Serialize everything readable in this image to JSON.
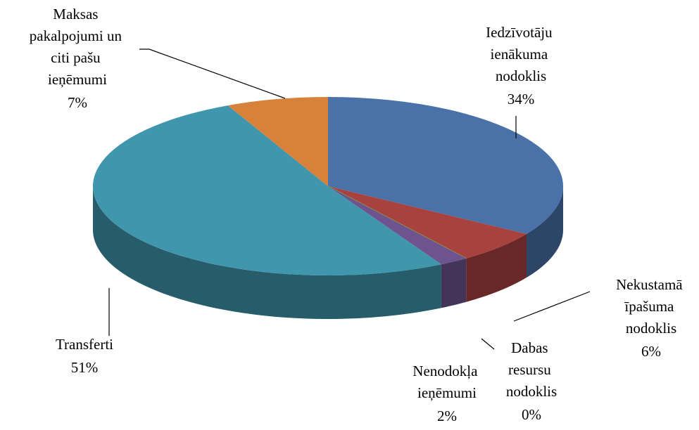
{
  "chart_data": {
    "type": "pie",
    "categories": [
      "Iedzīvotāju ienākuma nodoklis",
      "Nekustamā īpašuma nodoklis",
      "Dabas resursu nodoklis",
      "Nenodokļa ieņēmumi",
      "Transferti",
      "Maksas pakalpojumi un citi pašu ieņēmumi"
    ],
    "values": [
      34,
      6,
      0,
      2,
      51,
      7
    ],
    "value_labels": [
      "34%",
      "6%",
      "0%",
      "2%",
      "51%",
      "7%"
    ],
    "colors": [
      "#4a72a8",
      "#a8423f",
      "#85a04a",
      "#6e548e",
      "#3f96ad",
      "#d8813b"
    ]
  }
}
